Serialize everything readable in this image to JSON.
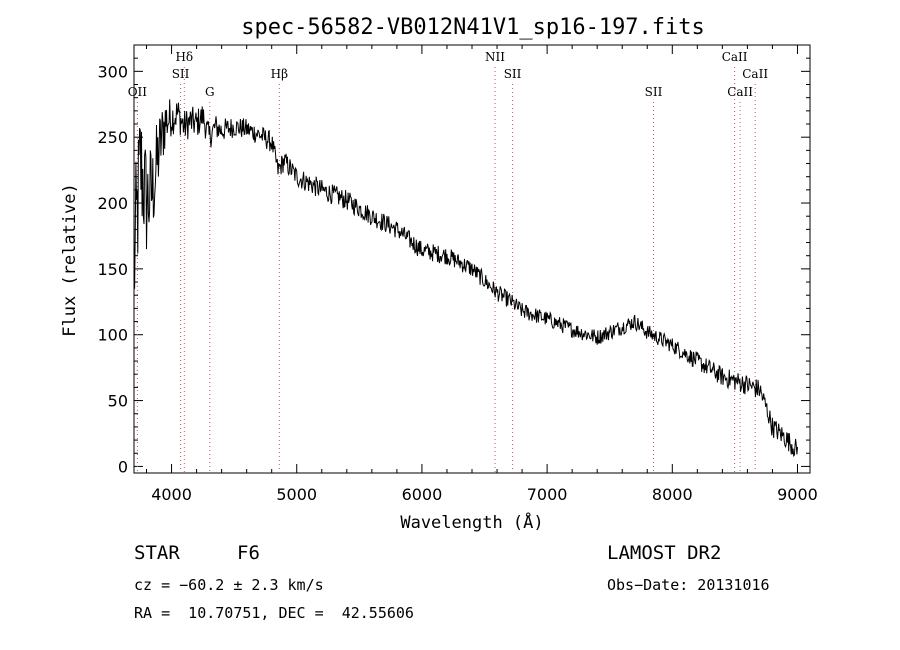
{
  "chart_data": {
    "type": "line",
    "title": "spec-56582-VB012N41V1_sp16-197.fits",
    "xlabel": "Wavelength (Å)",
    "ylabel": "Flux (relative)",
    "xlim": [
      3700,
      9100
    ],
    "ylim": [
      -5,
      320
    ],
    "xticks": [
      4000,
      5000,
      6000,
      7000,
      8000,
      9000
    ],
    "yticks": [
      0,
      50,
      100,
      150,
      200,
      250,
      300
    ],
    "grid": false,
    "series": [
      {
        "points": [
          [
            3700,
            150
          ],
          [
            3750,
            230
          ],
          [
            3800,
            200
          ],
          [
            3850,
            210
          ],
          [
            3900,
            240
          ],
          [
            3950,
            262
          ],
          [
            4000,
            265
          ],
          [
            4050,
            268
          ],
          [
            4100,
            258
          ],
          [
            4150,
            262
          ],
          [
            4200,
            260
          ],
          [
            4250,
            266
          ],
          [
            4300,
            250
          ],
          [
            4350,
            258
          ],
          [
            4400,
            255
          ],
          [
            4500,
            258
          ],
          [
            4600,
            256
          ],
          [
            4700,
            252
          ],
          [
            4800,
            246
          ],
          [
            4850,
            225
          ],
          [
            4900,
            232
          ],
          [
            5000,
            220
          ],
          [
            5200,
            210
          ],
          [
            5400,
            202
          ],
          [
            5600,
            190
          ],
          [
            5800,
            180
          ],
          [
            6000,
            164
          ],
          [
            6200,
            160
          ],
          [
            6400,
            150
          ],
          [
            6600,
            132
          ],
          [
            6700,
            126
          ],
          [
            6800,
            118
          ],
          [
            7000,
            112
          ],
          [
            7200,
            104
          ],
          [
            7400,
            98
          ],
          [
            7600,
            106
          ],
          [
            7700,
            110
          ],
          [
            7800,
            102
          ],
          [
            8000,
            92
          ],
          [
            8200,
            80
          ],
          [
            8400,
            68
          ],
          [
            8600,
            62
          ],
          [
            8700,
            58
          ],
          [
            8750,
            45
          ],
          [
            8800,
            30
          ],
          [
            8900,
            22
          ],
          [
            9000,
            12
          ]
        ],
        "noise_amplitude": [
          [
            3700,
            60
          ],
          [
            3900,
            30
          ],
          [
            4000,
            14
          ],
          [
            4500,
            8
          ],
          [
            5000,
            8
          ],
          [
            6000,
            7
          ],
          [
            7000,
            6
          ],
          [
            8000,
            6
          ],
          [
            8600,
            8
          ],
          [
            8800,
            8
          ],
          [
            9000,
            8
          ]
        ]
      }
    ],
    "spectral_lines": [
      {
        "name": "OII",
        "wavelength": 3727,
        "label_level": 1
      },
      {
        "name": "Hδ",
        "wavelength": 4102,
        "label_level": 3
      },
      {
        "name": "SII",
        "wavelength": 4072,
        "label_level": 2
      },
      {
        "name": "G",
        "wavelength": 4305,
        "label_level": 1
      },
      {
        "name": "Hβ",
        "wavelength": 4861,
        "label_level": 2
      },
      {
        "name": "NII",
        "wavelength": 6584,
        "label_level": 3
      },
      {
        "name": "SII",
        "wavelength": 6724,
        "label_level": 2
      },
      {
        "name": "SII",
        "wavelength": 7850,
        "label_level": 1
      },
      {
        "name": "CaII",
        "wavelength": 8498,
        "label_level": 3
      },
      {
        "name": "CaII",
        "wavelength": 8542,
        "label_level": 1
      },
      {
        "name": "CaII",
        "wavelength": 8662,
        "label_level": 2
      }
    ]
  },
  "info": {
    "class": "STAR",
    "subclass": "F6",
    "survey": "LAMOST DR2",
    "cz": "cz = −60.2 ± 2.3 km/s",
    "obs_date": "Obs−Date: 20131016",
    "coords": "RA =  10.70751, DEC =  42.55606"
  }
}
